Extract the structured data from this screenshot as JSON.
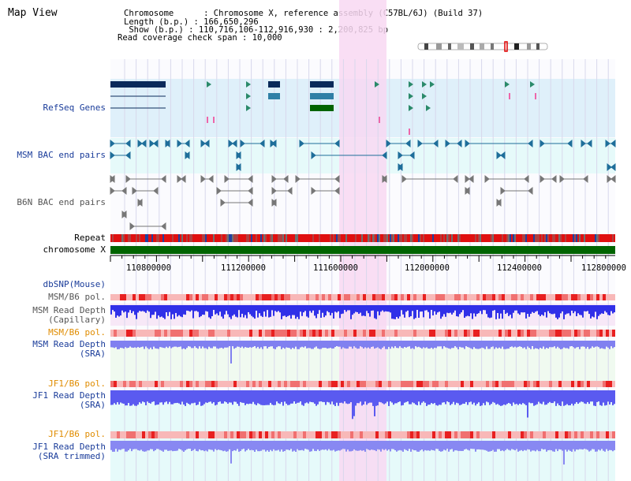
{
  "header": {
    "title": "Map View",
    "info_lines": [
      "Chromosome      : Chromosome X, reference assembly (C57BL/6J) (Build 37)",
      "Length (b.p.) : 166,650,296",
      " Show (b.p.) : 110,716,106-112,916,930 : 2,200,825 bp",
      "Read coverage check span : 10,000"
    ]
  },
  "tracks": {
    "refseq": "RefSeq Genes",
    "msm_bac": "MSM BAC end pairs",
    "b6n_bac": "B6N BAC end pairs",
    "repeat": "Repeat",
    "chromosome": "chromosome X",
    "dbsnp": "dbSNP(Mouse)",
    "msm_pol": "MSM/B6 pol.",
    "msm_depth_cap": [
      "MSM Read Depth",
      "(Capillary)"
    ],
    "msm_pol2": "MSM/B6 pol.",
    "msm_depth_sra": [
      "MSM Read Depth",
      "(SRA)"
    ],
    "jf1_pol": "JF1/B6 pol.",
    "jf1_depth_sra": [
      "JF1 Read Depth",
      "(SRA)"
    ],
    "jf1_pol2": "JF1/B6 pol.",
    "jf1_depth_trim": [
      "JF1 Read Depth",
      "(SRA trimmed)"
    ]
  },
  "axis": {
    "ticks": [
      "110800000",
      "111200000",
      "111600000",
      "112000000",
      "112400000",
      "112800000"
    ]
  },
  "colors": {
    "refseq_bg": "#dff0fa",
    "msm_bg": "#e6fafa",
    "highlight": "#f8d8f2",
    "chromosome": "#006400",
    "depth_blue": "#3a3af0",
    "depth_light": "#8f8ff5"
  }
}
